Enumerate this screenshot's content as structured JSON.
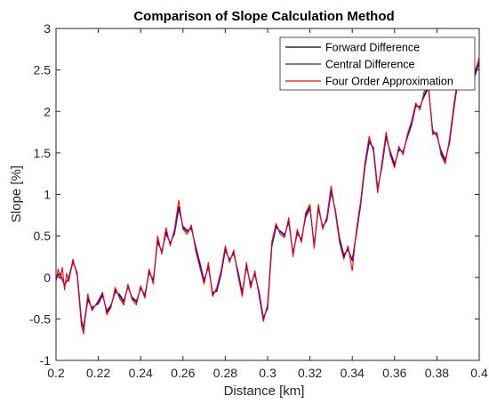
{
  "chart_data": {
    "type": "line",
    "title": "Comparison of Slope Calculation Method",
    "xlabel": "Distance [km]",
    "ylabel": "Slope [%]",
    "xlim": [
      0.2,
      0.4
    ],
    "ylim": [
      -1,
      3
    ],
    "xticks": [
      "0.2",
      "0.22",
      "0.24",
      "0.26",
      "0.28",
      "0.3",
      "0.32",
      "0.34",
      "0.36",
      "0.38",
      "0.4"
    ],
    "yticks": [
      "-1",
      "-0.5",
      "0",
      "0.5",
      "1",
      "1.5",
      "2",
      "2.5",
      "3"
    ],
    "grid": false,
    "legend_position": "top-right",
    "series": [
      {
        "name": "Forward Difference",
        "color": "#000000",
        "x": [
          0.2,
          0.202,
          0.204,
          0.206,
          0.208,
          0.21,
          0.212,
          0.213,
          0.215,
          0.217,
          0.22,
          0.222,
          0.224,
          0.226,
          0.228,
          0.23,
          0.232,
          0.234,
          0.236,
          0.238,
          0.24,
          0.242,
          0.244,
          0.246,
          0.248,
          0.25,
          0.252,
          0.254,
          0.256,
          0.258,
          0.26,
          0.262,
          0.264,
          0.266,
          0.268,
          0.27,
          0.272,
          0.274,
          0.276,
          0.278,
          0.28,
          0.282,
          0.284,
          0.286,
          0.288,
          0.29,
          0.292,
          0.294,
          0.296,
          0.298,
          0.3,
          0.302,
          0.304,
          0.306,
          0.308,
          0.31,
          0.312,
          0.314,
          0.316,
          0.318,
          0.32,
          0.322,
          0.324,
          0.326,
          0.328,
          0.33,
          0.332,
          0.334,
          0.336,
          0.338,
          0.34,
          0.342,
          0.344,
          0.346,
          0.348,
          0.35,
          0.352,
          0.354,
          0.356,
          0.358,
          0.36,
          0.362,
          0.364,
          0.366,
          0.368,
          0.37,
          0.372,
          0.374,
          0.376,
          0.378,
          0.38,
          0.382,
          0.384,
          0.386,
          0.388,
          0.39,
          0.392,
          0.394,
          0.396,
          0.398,
          0.4
        ],
        "y": [
          0.02,
          0.05,
          -0.1,
          0.0,
          0.2,
          0.05,
          -0.55,
          -0.6,
          -0.25,
          -0.38,
          -0.3,
          -0.2,
          -0.42,
          -0.35,
          -0.15,
          -0.22,
          -0.3,
          -0.1,
          -0.25,
          -0.3,
          -0.12,
          -0.22,
          0.08,
          -0.05,
          0.45,
          0.3,
          0.55,
          0.4,
          0.55,
          0.85,
          0.6,
          0.55,
          0.6,
          0.35,
          0.15,
          -0.05,
          0.15,
          -0.2,
          -0.15,
          0.05,
          0.35,
          0.2,
          0.3,
          0.05,
          -0.2,
          0.15,
          -0.1,
          0.05,
          -0.2,
          -0.5,
          -0.35,
          0.4,
          0.62,
          0.55,
          0.5,
          0.68,
          0.28,
          0.55,
          0.45,
          0.75,
          0.85,
          0.38,
          0.85,
          0.6,
          0.7,
          1.05,
          0.8,
          0.45,
          0.25,
          0.35,
          0.2,
          0.55,
          0.9,
          1.35,
          1.65,
          1.55,
          1.05,
          1.35,
          1.7,
          1.5,
          1.35,
          1.55,
          1.5,
          1.7,
          1.85,
          2.08,
          2.05,
          2.2,
          2.3,
          1.75,
          1.72,
          1.5,
          1.4,
          1.65,
          2.05,
          2.4,
          2.55,
          2.42,
          2.3,
          2.45,
          2.6
        ]
      },
      {
        "name": "Central Difference",
        "color": "#1f1fe0",
        "x": [
          0.2,
          0.202,
          0.204,
          0.206,
          0.208,
          0.21,
          0.212,
          0.213,
          0.215,
          0.217,
          0.22,
          0.222,
          0.224,
          0.226,
          0.228,
          0.23,
          0.232,
          0.234,
          0.236,
          0.238,
          0.24,
          0.242,
          0.244,
          0.246,
          0.248,
          0.25,
          0.252,
          0.254,
          0.256,
          0.258,
          0.26,
          0.262,
          0.264,
          0.266,
          0.268,
          0.27,
          0.272,
          0.274,
          0.276,
          0.278,
          0.28,
          0.282,
          0.284,
          0.286,
          0.288,
          0.29,
          0.292,
          0.294,
          0.296,
          0.298,
          0.3,
          0.302,
          0.304,
          0.306,
          0.308,
          0.31,
          0.312,
          0.314,
          0.316,
          0.318,
          0.32,
          0.322,
          0.324,
          0.326,
          0.328,
          0.33,
          0.332,
          0.334,
          0.336,
          0.338,
          0.34,
          0.342,
          0.344,
          0.346,
          0.348,
          0.35,
          0.352,
          0.354,
          0.356,
          0.358,
          0.36,
          0.362,
          0.364,
          0.366,
          0.368,
          0.37,
          0.372,
          0.374,
          0.376,
          0.378,
          0.38,
          0.382,
          0.384,
          0.386,
          0.388,
          0.39,
          0.392,
          0.394,
          0.396,
          0.398,
          0.4
        ],
        "y": [
          0.0,
          0.04,
          -0.08,
          -0.02,
          0.18,
          0.06,
          -0.5,
          -0.63,
          -0.28,
          -0.36,
          -0.32,
          -0.22,
          -0.4,
          -0.33,
          -0.18,
          -0.2,
          -0.28,
          -0.12,
          -0.24,
          -0.28,
          -0.14,
          -0.2,
          0.05,
          -0.02,
          0.42,
          0.32,
          0.52,
          0.42,
          0.52,
          0.82,
          0.62,
          0.57,
          0.58,
          0.38,
          0.18,
          -0.03,
          0.12,
          -0.18,
          -0.17,
          0.03,
          0.32,
          0.22,
          0.28,
          0.08,
          -0.17,
          0.12,
          -0.07,
          0.03,
          -0.17,
          -0.48,
          -0.38,
          0.37,
          0.6,
          0.56,
          0.52,
          0.66,
          0.3,
          0.52,
          0.47,
          0.72,
          0.83,
          0.4,
          0.82,
          0.62,
          0.68,
          1.02,
          0.82,
          0.48,
          0.28,
          0.33,
          0.22,
          0.52,
          0.87,
          1.32,
          1.62,
          1.57,
          1.08,
          1.32,
          1.68,
          1.52,
          1.37,
          1.53,
          1.52,
          1.68,
          1.83,
          2.06,
          2.06,
          2.18,
          2.28,
          1.78,
          1.7,
          1.53,
          1.42,
          1.62,
          2.02,
          2.37,
          2.52,
          2.44,
          2.32,
          2.43,
          2.58
        ]
      },
      {
        "name": "Four Order Approximation",
        "color": "#ff0000",
        "x": [
          0.2,
          0.201,
          0.202,
          0.203,
          0.204,
          0.205,
          0.206,
          0.208,
          0.21,
          0.212,
          0.213,
          0.215,
          0.217,
          0.22,
          0.222,
          0.224,
          0.226,
          0.228,
          0.23,
          0.232,
          0.234,
          0.236,
          0.238,
          0.24,
          0.242,
          0.244,
          0.246,
          0.248,
          0.25,
          0.252,
          0.254,
          0.256,
          0.258,
          0.26,
          0.262,
          0.264,
          0.266,
          0.268,
          0.27,
          0.272,
          0.274,
          0.276,
          0.278,
          0.28,
          0.282,
          0.284,
          0.286,
          0.288,
          0.29,
          0.292,
          0.294,
          0.296,
          0.298,
          0.3,
          0.302,
          0.304,
          0.306,
          0.308,
          0.31,
          0.312,
          0.314,
          0.316,
          0.318,
          0.32,
          0.322,
          0.324,
          0.326,
          0.328,
          0.33,
          0.332,
          0.334,
          0.336,
          0.338,
          0.34,
          0.342,
          0.344,
          0.346,
          0.348,
          0.35,
          0.352,
          0.354,
          0.356,
          0.358,
          0.36,
          0.362,
          0.364,
          0.366,
          0.368,
          0.37,
          0.372,
          0.374,
          0.376,
          0.378,
          0.38,
          0.382,
          0.384,
          0.386,
          0.388,
          0.39,
          0.392,
          0.394,
          0.396,
          0.398,
          0.4
        ],
        "y": [
          -0.05,
          0.1,
          -0.02,
          0.12,
          -0.15,
          0.05,
          -0.05,
          0.22,
          0.02,
          -0.58,
          -0.68,
          -0.2,
          -0.4,
          -0.28,
          -0.18,
          -0.45,
          -0.36,
          -0.12,
          -0.25,
          -0.33,
          -0.08,
          -0.27,
          -0.33,
          -0.1,
          -0.25,
          0.1,
          -0.08,
          0.5,
          0.28,
          0.6,
          0.38,
          0.58,
          0.93,
          0.58,
          0.52,
          0.63,
          0.32,
          0.12,
          -0.08,
          0.18,
          -0.23,
          -0.12,
          0.08,
          0.38,
          0.18,
          0.33,
          0.02,
          -0.23,
          0.18,
          -0.13,
          0.08,
          -0.23,
          -0.53,
          -0.32,
          0.43,
          0.65,
          0.52,
          0.48,
          0.72,
          0.25,
          0.58,
          0.42,
          0.78,
          0.88,
          0.35,
          0.88,
          0.58,
          0.73,
          1.1,
          0.78,
          0.42,
          0.22,
          0.38,
          0.08,
          0.58,
          0.93,
          1.38,
          1.7,
          1.52,
          1.02,
          1.38,
          1.75,
          1.47,
          1.32,
          1.58,
          1.48,
          1.72,
          1.88,
          2.1,
          2.02,
          2.24,
          2.33,
          1.72,
          1.75,
          1.47,
          1.37,
          1.68,
          2.08,
          2.43,
          2.6,
          2.4,
          2.27,
          2.48,
          2.65
        ]
      }
    ]
  }
}
